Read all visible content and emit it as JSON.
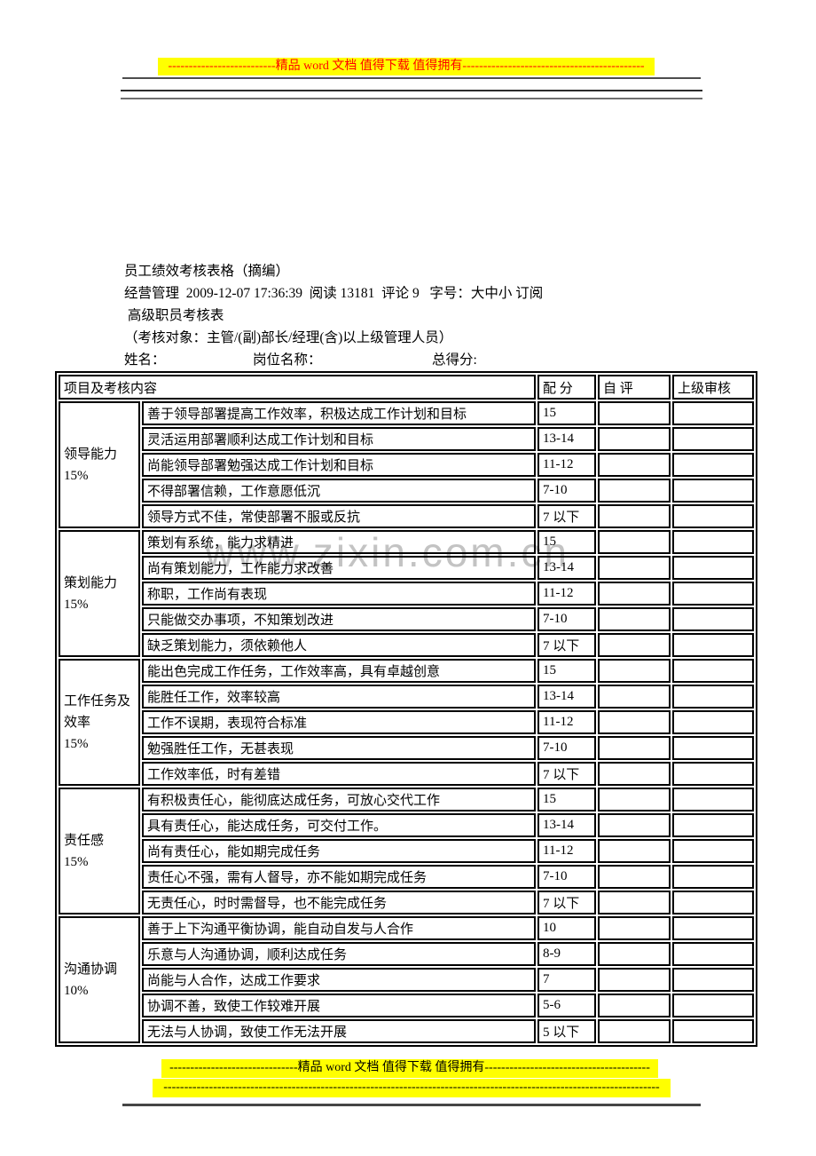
{
  "colors": {
    "highlight_yellow": "#ffff00",
    "banner_top_text": "#ff0000",
    "banner_bottom_text": "#000000",
    "table_border": "#000000",
    "watermark_gray": "#afafaf"
  },
  "banners": {
    "top_text": "--------------------------精品 word 文档 值得下载 值得拥有--------------------------------------------",
    "bottom_text": "-------------------------------精品 word 文档 值得下载 值得拥有----------------------------------------",
    "bottom_dashes": "------------------------------------------------------------------------------------------------------------------------"
  },
  "watermark": "www.zixin.com.cn",
  "header": {
    "title": "员工绩效考核表格（摘编）",
    "meta": "经营管理  2009-12-07 17:36:39  阅读 13181  评论 9   字号：大中小 订阅",
    "subtitle": " 高级职员考核表",
    "scope": "（考核对象：主管/(副)部长/经理(含)以上级管理人员）",
    "fields": {
      "name_label": "姓名：",
      "position_label": "岗位名称：",
      "total_label": "总得分:"
    }
  },
  "table": {
    "headers": {
      "item": "项目及考核内容",
      "score": "配  分",
      "self": "自  评",
      "supervisor": "上级审核"
    },
    "groups": [
      {
        "category": "领导能力",
        "weight": "15%",
        "rows": [
          {
            "desc": "善于领导部署提高工作效率，积极达成工作计划和目标",
            "score": "15"
          },
          {
            "desc": "灵活运用部署顺利达成工作计划和目标",
            "score": "13-14"
          },
          {
            "desc": "尚能领导部署勉强达成工作计划和目标",
            "score": "11-12"
          },
          {
            "desc": "不得部署信赖，工作意愿低沉",
            "score": "7-10"
          },
          {
            "desc": "领导方式不佳，常使部署不服或反抗",
            "score": "7 以下"
          }
        ]
      },
      {
        "category": "策划能力",
        "weight": "15%",
        "rows": [
          {
            "desc": "策划有系统，能力求精进",
            "score": "15"
          },
          {
            "desc": "尚有策划能力，工作能力求改善",
            "score": "13-14"
          },
          {
            "desc": "称职，工作尚有表现",
            "score": "11-12"
          },
          {
            "desc": "只能做交办事项，不知策划改进",
            "score": "7-10"
          },
          {
            "desc": "缺乏策划能力，须依赖他人",
            "score": "7 以下"
          }
        ]
      },
      {
        "category": "工作任务及效率",
        "weight": "15%",
        "rows": [
          {
            "desc": "能出色完成工作任务，工作效率高，具有卓越创意",
            "score": "15"
          },
          {
            "desc": "能胜任工作，效率较高",
            "score": "13-14"
          },
          {
            "desc": "工作不误期，表现符合标准",
            "score": "11-12"
          },
          {
            "desc": "勉强胜任工作，无甚表现",
            "score": "7-10"
          },
          {
            "desc": "工作效率低，时有差错",
            "score": "7 以下"
          }
        ]
      },
      {
        "category": "责任感",
        "weight": "15%",
        "rows": [
          {
            "desc": "有积极责任心，能彻底达成任务，可放心交代工作",
            "score": "15"
          },
          {
            "desc": "具有责任心，能达成任务，可交付工作。",
            "score": "13-14"
          },
          {
            "desc": "尚有责任心，能如期完成任务",
            "score": "11-12"
          },
          {
            "desc": "责任心不强，需有人督导，亦不能如期完成任务",
            "score": "7-10"
          },
          {
            "desc": "无责任心，时时需督导，也不能完成任务",
            "score": "7 以下"
          }
        ]
      },
      {
        "category": "沟通协调",
        "weight": "10%",
        "rows": [
          {
            "desc": "善于上下沟通平衡协调，能自动自发与人合作",
            "score": "10"
          },
          {
            "desc": "乐意与人沟通协调，顺利达成任务",
            "score": "8-9"
          },
          {
            "desc": "尚能与人合作，达成工作要求",
            "score": "7"
          },
          {
            "desc": "协调不善，致使工作较难开展",
            "score": "5-6"
          },
          {
            "desc": "无法与人协调，致使工作无法开展",
            "score": "5 以下"
          }
        ]
      }
    ]
  }
}
